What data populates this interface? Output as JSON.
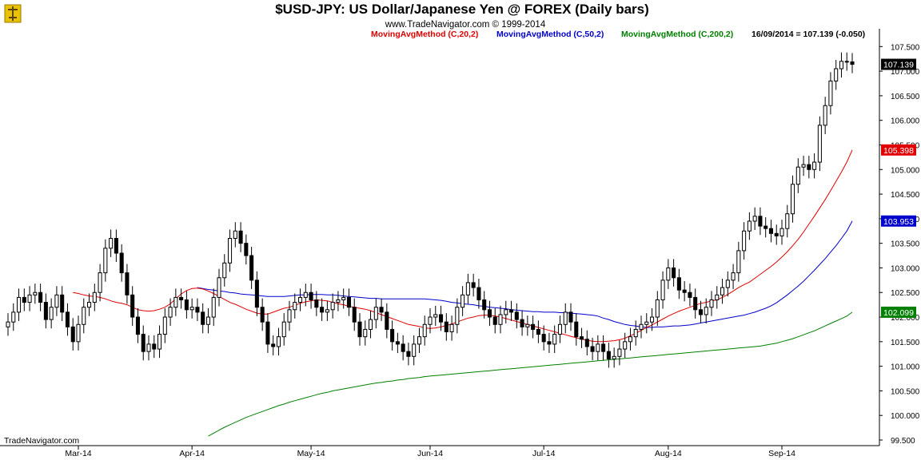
{
  "header": {
    "title": "$USD-JPY:  US Dollar/Japanese Yen @ FOREX  (Daily bars)",
    "subtitle": "www.TradeNavigator.com © 1999-2014",
    "legend": [
      {
        "label": "MovingAvgMethod (C,20,2)",
        "color": "#e00000"
      },
      {
        "label": "MovingAvgMethod (C,50,2)",
        "color": "#0000cc"
      },
      {
        "label": "MovingAvgMethod (C,200,2)",
        "color": "#008000"
      }
    ],
    "last_quote": "16/09/2014 = 107.139 (-0.050)"
  },
  "watermark": "TradeNavigator.com",
  "chart_data": {
    "type": "candlestick",
    "ylim": [
      99.5,
      107.7
    ],
    "yticks": [
      "107.500",
      "107.000",
      "106.500",
      "106.000",
      "105.500",
      "105.000",
      "104.500",
      "104.000",
      "103.500",
      "103.000",
      "102.500",
      "102.000",
      "101.500",
      "101.000",
      "100.500",
      "100.000",
      "99.500"
    ],
    "xticks": [
      {
        "label": "Mar-14",
        "index": 13
      },
      {
        "label": "Apr-14",
        "index": 34
      },
      {
        "label": "May-14",
        "index": 56
      },
      {
        "label": "Jun-14",
        "index": 78
      },
      {
        "label": "Jul-14",
        "index": 99
      },
      {
        "label": "Aug-14",
        "index": 122
      },
      {
        "label": "Sep-14",
        "index": 143
      }
    ],
    "price_tags": [
      {
        "label": "107.139",
        "value": 107.139,
        "color": "#000000"
      },
      {
        "label": "105.398",
        "value": 105.398,
        "color": "#e00000"
      },
      {
        "label": "103.953",
        "value": 103.953,
        "color": "#0000cc"
      },
      {
        "label": "102.099",
        "value": 102.099,
        "color": "#008000"
      }
    ],
    "close": [
      101.9,
      102.1,
      102.4,
      102.3,
      102.45,
      102.5,
      102.3,
      101.95,
      102.2,
      102.45,
      102.1,
      101.8,
      101.5,
      101.85,
      102.2,
      102.3,
      102.5,
      102.9,
      103.4,
      103.6,
      103.3,
      102.9,
      102.45,
      102.0,
      101.65,
      101.3,
      101.45,
      101.35,
      101.65,
      102.0,
      102.2,
      102.4,
      102.35,
      102.15,
      102.2,
      102.1,
      101.85,
      102.0,
      102.4,
      102.8,
      103.1,
      103.6,
      103.75,
      103.5,
      103.25,
      102.75,
      102.2,
      101.9,
      101.45,
      101.4,
      101.6,
      101.9,
      102.15,
      102.3,
      102.4,
      102.5,
      102.35,
      102.2,
      102.1,
      102.15,
      102.3,
      102.35,
      102.4,
      102.2,
      101.9,
      101.6,
      101.75,
      101.95,
      102.2,
      102.1,
      101.75,
      101.5,
      101.45,
      101.3,
      101.2,
      101.45,
      101.6,
      101.85,
      102.0,
      102.05,
      101.9,
      101.7,
      101.85,
      102.2,
      102.45,
      102.7,
      102.6,
      102.35,
      102.15,
      102.0,
      101.85,
      102.05,
      102.15,
      102.1,
      101.95,
      101.8,
      101.85,
      101.75,
      101.65,
      101.5,
      101.45,
      101.65,
      101.85,
      102.1,
      101.9,
      101.6,
      101.55,
      101.4,
      101.3,
      101.45,
      101.3,
      101.15,
      101.2,
      101.35,
      101.5,
      101.6,
      101.75,
      101.85,
      101.9,
      102.0,
      102.35,
      102.75,
      103.0,
      102.8,
      102.55,
      102.5,
      102.4,
      102.15,
      102.05,
      102.2,
      102.35,
      102.45,
      102.6,
      102.75,
      102.9,
      103.35,
      103.75,
      103.95,
      104.05,
      103.85,
      103.8,
      103.7,
      103.65,
      103.8,
      104.1,
      104.7,
      105.05,
      105.1,
      105.0,
      105.15,
      105.9,
      106.3,
      106.8,
      107.05,
      107.2,
      107.189,
      107.139
    ],
    "sma20": [
      102.5,
      102.48,
      102.45,
      102.43,
      102.42,
      102.4,
      102.37,
      102.33,
      102.3,
      102.28,
      102.25,
      102.2,
      102.15,
      102.13,
      102.12,
      102.13,
      102.16,
      102.2,
      102.27,
      102.37,
      102.47,
      102.54,
      102.58,
      102.59,
      102.57,
      102.53,
      102.48,
      102.42,
      102.36,
      102.3,
      102.26,
      102.21,
      102.16,
      102.12,
      102.08,
      102.06,
      102.06,
      102.1,
      102.14,
      102.18,
      102.2,
      102.24,
      102.28,
      102.31,
      102.33,
      102.35,
      102.34,
      102.33,
      102.3,
      102.27,
      102.25,
      102.22,
      102.2,
      102.18,
      102.16,
      102.13,
      102.09,
      102.05,
      102.01,
      101.97,
      101.93,
      101.89,
      101.85,
      101.83,
      101.81,
      101.78,
      101.77,
      101.78,
      101.8,
      101.83,
      101.86,
      101.9,
      101.94,
      101.98,
      102.0,
      102.03,
      102.04,
      102.04,
      102.02,
      102.0,
      101.97,
      101.94,
      101.91,
      101.88,
      101.85,
      101.82,
      101.79,
      101.76,
      101.73,
      101.7,
      101.67,
      101.64,
      101.61,
      101.58,
      101.55,
      101.53,
      101.51,
      101.5,
      101.5,
      101.51,
      101.52,
      101.54,
      101.57,
      101.62,
      101.67,
      101.73,
      101.79,
      101.84,
      101.9,
      101.96,
      102.02,
      102.07,
      102.12,
      102.16,
      102.2,
      102.24,
      102.28,
      102.3,
      102.33,
      102.35,
      102.4,
      102.46,
      102.53,
      102.6,
      102.66,
      102.71,
      102.79,
      102.87,
      102.95,
      103.03,
      103.12,
      103.22,
      103.33,
      103.45,
      103.58,
      103.73,
      103.89,
      104.05,
      104.22,
      104.39,
      104.57,
      104.76,
      104.95,
      105.15,
      105.398
    ],
    "sma50": [
      102.6,
      102.58,
      102.56,
      102.55,
      102.53,
      102.52,
      102.5,
      102.49,
      102.47,
      102.46,
      102.45,
      102.44,
      102.43,
      102.42,
      102.42,
      102.42,
      102.42,
      102.43,
      102.44,
      102.45,
      102.45,
      102.46,
      102.46,
      102.46,
      102.45,
      102.45,
      102.44,
      102.43,
      102.42,
      102.41,
      102.4,
      102.39,
      102.38,
      102.38,
      102.37,
      102.37,
      102.37,
      102.37,
      102.37,
      102.37,
      102.37,
      102.37,
      102.37,
      102.36,
      102.35,
      102.34,
      102.32,
      102.3,
      102.29,
      102.27,
      102.26,
      102.25,
      102.23,
      102.22,
      102.2,
      102.19,
      102.18,
      102.17,
      102.15,
      102.14,
      102.13,
      102.12,
      102.11,
      102.11,
      102.1,
      102.1,
      102.1,
      102.09,
      102.09,
      102.08,
      102.07,
      102.06,
      102.05,
      102.04,
      102.02,
      101.98,
      101.95,
      101.91,
      101.88,
      101.85,
      101.83,
      101.82,
      101.8,
      101.79,
      101.79,
      101.8,
      101.8,
      101.81,
      101.82,
      101.82,
      101.83,
      101.84,
      101.86,
      101.88,
      101.9,
      101.92,
      101.94,
      101.96,
      101.98,
      102.0,
      102.02,
      102.04,
      102.07,
      102.1,
      102.14,
      102.18,
      102.23,
      102.29,
      102.37,
      102.45,
      102.54,
      102.63,
      102.73,
      102.84,
      102.95,
      103.07,
      103.19,
      103.32,
      103.45,
      103.6,
      103.75,
      103.953
    ],
    "sma200": [
      99.58,
      99.64,
      99.7,
      99.76,
      99.81,
      99.86,
      99.91,
      99.96,
      100.0,
      100.04,
      100.08,
      100.12,
      100.16,
      100.2,
      100.23,
      100.27,
      100.3,
      100.33,
      100.36,
      100.39,
      100.42,
      100.45,
      100.47,
      100.5,
      100.52,
      100.54,
      100.56,
      100.58,
      100.6,
      100.62,
      100.64,
      100.66,
      100.67,
      100.69,
      100.7,
      100.72,
      100.73,
      100.75,
      100.76,
      100.77,
      100.79,
      100.8,
      100.81,
      100.82,
      100.83,
      100.84,
      100.85,
      100.86,
      100.87,
      100.88,
      100.89,
      100.9,
      100.91,
      100.92,
      100.93,
      100.94,
      100.95,
      100.96,
      100.97,
      100.98,
      100.99,
      101.0,
      101.01,
      101.02,
      101.03,
      101.04,
      101.05,
      101.06,
      101.07,
      101.08,
      101.09,
      101.1,
      101.11,
      101.12,
      101.13,
      101.14,
      101.15,
      101.16,
      101.17,
      101.18,
      101.19,
      101.2,
      101.21,
      101.22,
      101.23,
      101.24,
      101.25,
      101.26,
      101.27,
      101.28,
      101.29,
      101.3,
      101.31,
      101.32,
      101.33,
      101.34,
      101.35,
      101.36,
      101.37,
      101.38,
      101.39,
      101.4,
      101.41,
      101.43,
      101.45,
      101.47,
      101.5,
      101.53,
      101.56,
      101.6,
      101.64,
      101.68,
      101.72,
      101.77,
      101.82,
      101.87,
      101.92,
      101.97,
      102.02,
      102.099
    ]
  }
}
